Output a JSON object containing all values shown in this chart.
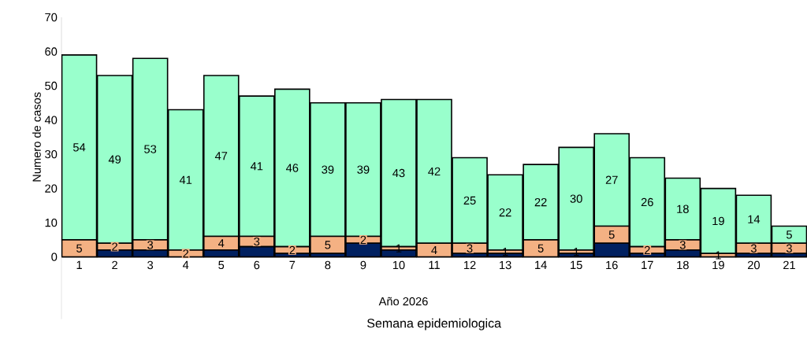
{
  "chart_data": {
    "type": "bar",
    "stacked": true,
    "xlabel": "Semana epidemiologica",
    "ylabel": "Numero de casos",
    "annotations": [
      "Año 2026"
    ],
    "categories": [
      "1",
      "2",
      "3",
      "4",
      "5",
      "6",
      "7",
      "8",
      "9",
      "10",
      "11",
      "12",
      "13",
      "14",
      "15",
      "16",
      "17",
      "18",
      "19",
      "20",
      "21"
    ],
    "series": [
      {
        "color": "#002060",
        "values": [
          0,
          2,
          2,
          0,
          2,
          3,
          1,
          1,
          4,
          2,
          0,
          1,
          1,
          0,
          1,
          4,
          1,
          2,
          0,
          1,
          1
        ]
      },
      {
        "color": "#f4b183",
        "values": [
          5,
          2,
          3,
          2,
          4,
          3,
          2,
          5,
          2,
          1,
          4,
          3,
          1,
          5,
          1,
          5,
          2,
          3,
          1,
          3,
          3
        ],
        "value_labels": [
          "5",
          "2",
          "3",
          "2",
          "4",
          "3",
          "2",
          "5",
          "2",
          "1",
          "4",
          "3",
          "1",
          "5",
          "1",
          "5",
          "2",
          "3",
          "1",
          "3",
          "3"
        ]
      },
      {
        "color": "#99ffcc",
        "values": [
          54,
          49,
          53,
          41,
          47,
          41,
          46,
          39,
          39,
          43,
          42,
          25,
          22,
          22,
          30,
          27,
          26,
          18,
          19,
          14,
          5
        ],
        "value_labels": [
          "54",
          "49",
          "53",
          "41",
          "47",
          "41",
          "46",
          "39",
          "39",
          "43",
          "42",
          "25",
          "22",
          "22",
          "30",
          "27",
          "26",
          "18",
          "19",
          "14",
          "5"
        ]
      }
    ],
    "ylim": [
      0,
      70
    ],
    "yticks": [
      0,
      10,
      20,
      30,
      40,
      50,
      60,
      70
    ]
  }
}
